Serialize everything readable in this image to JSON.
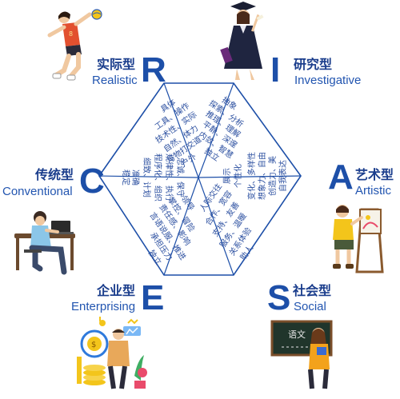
{
  "types": {
    "R": {
      "letter": "R",
      "zh": "实际型",
      "en": "Realistic",
      "traits": [
        "具体",
        "工具、操作",
        "技术性、实际",
        "自然、体力",
        "与物打交道",
        "户外"
      ]
    },
    "I": {
      "letter": "I",
      "zh": "研究型",
      "en": "Investigative",
      "traits": [
        "抽象",
        "探索、分析",
        "推理、理解",
        "平静、深邃",
        "内敛、智慧",
        "独立"
      ]
    },
    "A": {
      "letter": "A",
      "zh": "艺术型",
      "en": "Artistic",
      "traits": [
        "自我表达",
        "创造力、美",
        "想象力、自由",
        "变化、多样性",
        "个性化",
        "展示"
      ]
    },
    "S": {
      "letter": "S",
      "zh": "社会型",
      "en": "Social",
      "traits": [
        "人际交往",
        "合作、宽容",
        "支持、友善",
        "服务、温暖",
        "关系体验",
        "助人"
      ]
    },
    "E": {
      "letter": "E",
      "zh": "企业型",
      "en": "Enterprising",
      "traits": [
        "领导",
        "掌控、冒险",
        "责任感、影响",
        "言语说服、推进",
        "承担压力",
        "独立"
      ]
    },
    "C": {
      "letter": "C",
      "zh": "传统型",
      "en": "Conventional",
      "traits": [
        "忠诚、保守",
        "规律性、执行",
        "程序化、组织",
        "细致、计划",
        "准确",
        "稳定"
      ]
    }
  },
  "colors": {
    "hex_stroke": "#1d4fa8",
    "trait_text": "#2b4fa0",
    "accent_blue": "#1d4fa8"
  },
  "icons": {
    "R": "volleyball-player",
    "I": "graduate",
    "A": "painter",
    "S": "teacher",
    "E": "business-finance",
    "C": "office-worker"
  }
}
